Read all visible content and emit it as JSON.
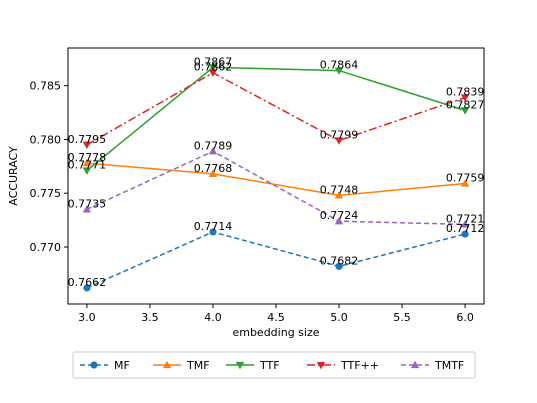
{
  "chart_data": {
    "type": "line",
    "title": "",
    "xlabel": "embedding size",
    "ylabel": "ACCURACY",
    "xlim": [
      2.85,
      6.15
    ],
    "ylim": [
      0.7647,
      0.7885
    ],
    "xticks": [
      3.0,
      3.5,
      4.0,
      4.5,
      5.0,
      5.5,
      6.0
    ],
    "xtick_labels": [
      "3.0",
      "3.5",
      "4.0",
      "4.5",
      "5.0",
      "5.5",
      "6.0"
    ],
    "yticks": [
      0.77,
      0.775,
      0.78,
      0.785
    ],
    "ytick_labels": [
      "0.770",
      "0.775",
      "0.780",
      "0.785"
    ],
    "grid": false,
    "legend_position": "bottom-outside",
    "x": [
      3.0,
      4.0,
      5.0,
      6.0
    ],
    "series": [
      {
        "name": "MF",
        "values": [
          0.7662,
          0.7714,
          0.7682,
          0.7712
        ],
        "labels": [
          "0.7662",
          "0.7714",
          "0.7682",
          "0.7712"
        ],
        "color": "#1f77b4",
        "linestyle": "dashed",
        "marker": "circle"
      },
      {
        "name": "TMF",
        "values": [
          0.7778,
          0.7768,
          0.7748,
          0.7759
        ],
        "labels": [
          "0.7778",
          "0.7768",
          "0.7748",
          "0.7759"
        ],
        "color": "#ff7f0e",
        "linestyle": "solid",
        "marker": "triangle-up"
      },
      {
        "name": "TTF",
        "values": [
          0.7771,
          0.7867,
          0.7864,
          0.7827
        ],
        "labels": [
          "0.7771",
          "0.7867",
          "0.7864",
          "0.7827"
        ],
        "color": "#2ca02c",
        "linestyle": "solid",
        "marker": "triangle-down"
      },
      {
        "name": "TTF++",
        "values": [
          0.7795,
          0.7862,
          0.7799,
          0.7839
        ],
        "labels": [
          "0.7795",
          "0.7862",
          "0.7799",
          "0.7839"
        ],
        "color": "#d62728",
        "linestyle": "dashdot",
        "marker": "triangle-down"
      },
      {
        "name": "TMTF",
        "values": [
          0.7735,
          0.7789,
          0.7724,
          0.7721
        ],
        "labels": [
          "0.7735",
          "0.7789",
          "0.7724",
          "0.7721"
        ],
        "color": "#9467bd",
        "linestyle": "dashed",
        "marker": "triangle-up"
      }
    ]
  }
}
